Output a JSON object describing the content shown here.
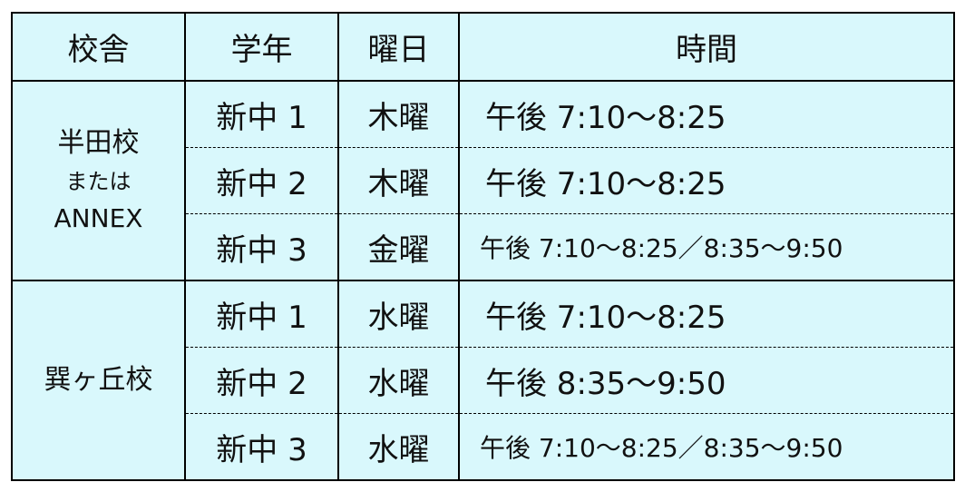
{
  "headers": [
    "校舎",
    "学年",
    "曜日",
    "時間"
  ],
  "schools": [
    {
      "name": "半田校",
      "connector": "または",
      "alt_name": "ANNEX",
      "rows": [
        {
          "grade": "新中 1",
          "day": "木曜",
          "time": "午後 7:10〜8:25"
        },
        {
          "grade": "新中 2",
          "day": "木曜",
          "time": "午後 7:10〜8:25"
        },
        {
          "grade": "新中 3",
          "day": "金曜",
          "time": "午後 7:10〜8:25／8:35〜9:50"
        }
      ]
    },
    {
      "name": "巽ヶ丘校",
      "rows": [
        {
          "grade": "新中 1",
          "day": "水曜",
          "time": "午後 7:10〜8:25"
        },
        {
          "grade": "新中 2",
          "day": "水曜",
          "time": "午後 8:35〜9:50"
        },
        {
          "grade": "新中 3",
          "day": "水曜",
          "time": "午後 7:10〜8:25／8:35〜9:50"
        }
      ]
    }
  ],
  "colors": {
    "cell_background": "#d9f8fc",
    "border": "#000000"
  }
}
